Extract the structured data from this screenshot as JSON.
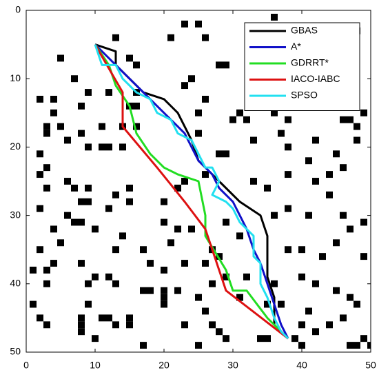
{
  "chart_data": {
    "type": "line",
    "xlim": [
      0,
      50
    ],
    "ylim": [
      0,
      50
    ],
    "xticks": [
      0,
      10,
      20,
      30,
      40,
      50
    ],
    "yticks": [
      0,
      10,
      20,
      30,
      40,
      50
    ],
    "y_reversed": true,
    "legend_position": "upper right",
    "obstacle_color": "#000000",
    "obstacles": [
      [
        36,
        1
      ],
      [
        23,
        2
      ],
      [
        25,
        2
      ],
      [
        48,
        3
      ],
      [
        13,
        4
      ],
      [
        21,
        4
      ],
      [
        26,
        4
      ],
      [
        15,
        7
      ],
      [
        5,
        7
      ],
      [
        46,
        7
      ],
      [
        16,
        8
      ],
      [
        28,
        8
      ],
      [
        29,
        8
      ],
      [
        33,
        8
      ],
      [
        40,
        8
      ],
      [
        41,
        9
      ],
      [
        44,
        9
      ],
      [
        7,
        10
      ],
      [
        24,
        10
      ],
      [
        43,
        9
      ],
      [
        23,
        11
      ],
      [
        9,
        12
      ],
      [
        12,
        12
      ],
      [
        16,
        12
      ],
      [
        2,
        13
      ],
      [
        4,
        13
      ],
      [
        8,
        14
      ],
      [
        16,
        14
      ],
      [
        15,
        14
      ],
      [
        26,
        13
      ],
      [
        36,
        15
      ],
      [
        31,
        15
      ],
      [
        32,
        16
      ],
      [
        4,
        15
      ],
      [
        3,
        17
      ],
      [
        11,
        17
      ],
      [
        25,
        15
      ],
      [
        30,
        16
      ],
      [
        38,
        16
      ],
      [
        44,
        14
      ],
      [
        49,
        15
      ],
      [
        46,
        16
      ],
      [
        47,
        16
      ],
      [
        48,
        17
      ],
      [
        3,
        18
      ],
      [
        5,
        17
      ],
      [
        8,
        18
      ],
      [
        6,
        19
      ],
      [
        9,
        20
      ],
      [
        14,
        17
      ],
      [
        16,
        17
      ],
      [
        12,
        20
      ],
      [
        14,
        20
      ],
      [
        25,
        18
      ],
      [
        33,
        19
      ],
      [
        37,
        18
      ],
      [
        42,
        19
      ],
      [
        48,
        19
      ],
      [
        2,
        21
      ],
      [
        11,
        20
      ],
      [
        28,
        21
      ],
      [
        29,
        21
      ],
      [
        38,
        20
      ],
      [
        45,
        21
      ],
      [
        41,
        22
      ],
      [
        46,
        23
      ],
      [
        44,
        24
      ],
      [
        2,
        24
      ],
      [
        3,
        23
      ],
      [
        7,
        26
      ],
      [
        6,
        25
      ],
      [
        9,
        26
      ],
      [
        13,
        27
      ],
      [
        15,
        26
      ],
      [
        23,
        25
      ],
      [
        26,
        24
      ],
      [
        38,
        24
      ],
      [
        3,
        26
      ],
      [
        35,
        26
      ],
      [
        44,
        27
      ],
      [
        42,
        25
      ],
      [
        8,
        28
      ],
      [
        9,
        28
      ],
      [
        20,
        28
      ],
      [
        22,
        26
      ],
      [
        33,
        25
      ],
      [
        2,
        29
      ],
      [
        12,
        29
      ],
      [
        15,
        28
      ],
      [
        20,
        31
      ],
      [
        38,
        29
      ],
      [
        41,
        30
      ],
      [
        46,
        30
      ],
      [
        36,
        30
      ],
      [
        6,
        30
      ],
      [
        4,
        32
      ],
      [
        7,
        31
      ],
      [
        10,
        32
      ],
      [
        8,
        31
      ],
      [
        14,
        33
      ],
      [
        22,
        32
      ],
      [
        24,
        32
      ],
      [
        29,
        31
      ],
      [
        31,
        33
      ],
      [
        47,
        32
      ],
      [
        49,
        31
      ],
      [
        5,
        34
      ],
      [
        2,
        35
      ],
      [
        13,
        35
      ],
      [
        17,
        35
      ],
      [
        21,
        34
      ],
      [
        27,
        35
      ],
      [
        38,
        35
      ],
      [
        40,
        35
      ],
      [
        45,
        34
      ],
      [
        49,
        36
      ],
      [
        4,
        37
      ],
      [
        8,
        37
      ],
      [
        18,
        37
      ],
      [
        20,
        38
      ],
      [
        23,
        37
      ],
      [
        26,
        37
      ],
      [
        28,
        36
      ],
      [
        43,
        36
      ],
      [
        1,
        38
      ],
      [
        3,
        38
      ],
      [
        10,
        39
      ],
      [
        12,
        39
      ],
      [
        9,
        40
      ],
      [
        13,
        40
      ],
      [
        27,
        40
      ],
      [
        29,
        39
      ],
      [
        32,
        39
      ],
      [
        36,
        40
      ],
      [
        40,
        39
      ],
      [
        42,
        40
      ],
      [
        3,
        40
      ],
      [
        17,
        41
      ],
      [
        18,
        41
      ],
      [
        20,
        41
      ],
      [
        22,
        41
      ],
      [
        25,
        42
      ],
      [
        31,
        42
      ],
      [
        35,
        43
      ],
      [
        37,
        43
      ],
      [
        45,
        41
      ],
      [
        47,
        42
      ],
      [
        41,
        44
      ],
      [
        9,
        43
      ],
      [
        20,
        42
      ],
      [
        20,
        43
      ],
      [
        2,
        45
      ],
      [
        3,
        46
      ],
      [
        8,
        45
      ],
      [
        8,
        46
      ],
      [
        8,
        47
      ],
      [
        11,
        45
      ],
      [
        12,
        45
      ],
      [
        13,
        46
      ],
      [
        15,
        45
      ],
      [
        15,
        46
      ],
      [
        23,
        46
      ],
      [
        26,
        44
      ],
      [
        27,
        46
      ],
      [
        28,
        47
      ],
      [
        34,
        48
      ],
      [
        35,
        48
      ],
      [
        40,
        46
      ],
      [
        42,
        47
      ],
      [
        44,
        46
      ],
      [
        46,
        45
      ],
      [
        48,
        43
      ],
      [
        49,
        48
      ],
      [
        50,
        49
      ],
      [
        47,
        49
      ],
      [
        48,
        49
      ],
      [
        17,
        49
      ],
      [
        25,
        49
      ],
      [
        29,
        48
      ],
      [
        39,
        48
      ],
      [
        40,
        49
      ],
      [
        10,
        48
      ],
      [
        1,
        43
      ],
      [
        37,
        12
      ],
      [
        33,
        12
      ]
    ],
    "series": [
      {
        "name": "GBAS",
        "color": "#000000",
        "x": [
          10,
          13,
          13,
          15,
          17,
          20,
          22,
          24,
          25,
          28,
          31,
          34,
          35,
          35,
          36,
          36,
          38
        ],
        "values": [
          5,
          6,
          8,
          10,
          12,
          13,
          15,
          19,
          22,
          25,
          28,
          30,
          33,
          39,
          42,
          46,
          48
        ]
      },
      {
        "name": "A*",
        "color": "#1010c8",
        "x": [
          10,
          12,
          14,
          15,
          17,
          19,
          21,
          23,
          24,
          25,
          27,
          28,
          30,
          31,
          32,
          33,
          34,
          35,
          36,
          37,
          38
        ],
        "values": [
          5,
          7,
          9,
          10,
          12,
          14,
          16,
          18,
          20,
          22,
          24,
          26,
          28,
          30,
          32,
          35,
          37,
          40,
          43,
          46,
          48
        ]
      },
      {
        "name": "GDRRT*",
        "color": "#22dd22",
        "x": [
          10,
          12,
          13,
          15,
          16,
          18,
          20,
          22,
          25,
          26,
          26,
          29,
          30,
          32,
          35,
          38
        ],
        "values": [
          5,
          8,
          11,
          14,
          18,
          21,
          23,
          24,
          25,
          30,
          33,
          38,
          41,
          41,
          45,
          48
        ]
      },
      {
        "name": "IACO-IABC",
        "color": "#dd1111",
        "x": [
          10,
          14,
          14,
          19,
          23,
          26,
          29,
          38
        ],
        "values": [
          5,
          12,
          17,
          23,
          28,
          32,
          41,
          48
        ]
      },
      {
        "name": "SPSO",
        "color": "#22e0f0",
        "x": [
          10,
          11,
          13,
          14,
          15,
          16,
          18,
          19,
          21,
          22,
          24,
          25,
          26,
          27,
          28,
          27,
          29,
          30,
          31,
          33,
          33,
          34,
          34,
          35,
          36,
          37,
          38
        ],
        "values": [
          5,
          8,
          8,
          10,
          11,
          12,
          13,
          15,
          16,
          18,
          19,
          21,
          23,
          23,
          25,
          27,
          28,
          29,
          31,
          33,
          36,
          37,
          40,
          42,
          45,
          47,
          48
        ]
      }
    ]
  }
}
